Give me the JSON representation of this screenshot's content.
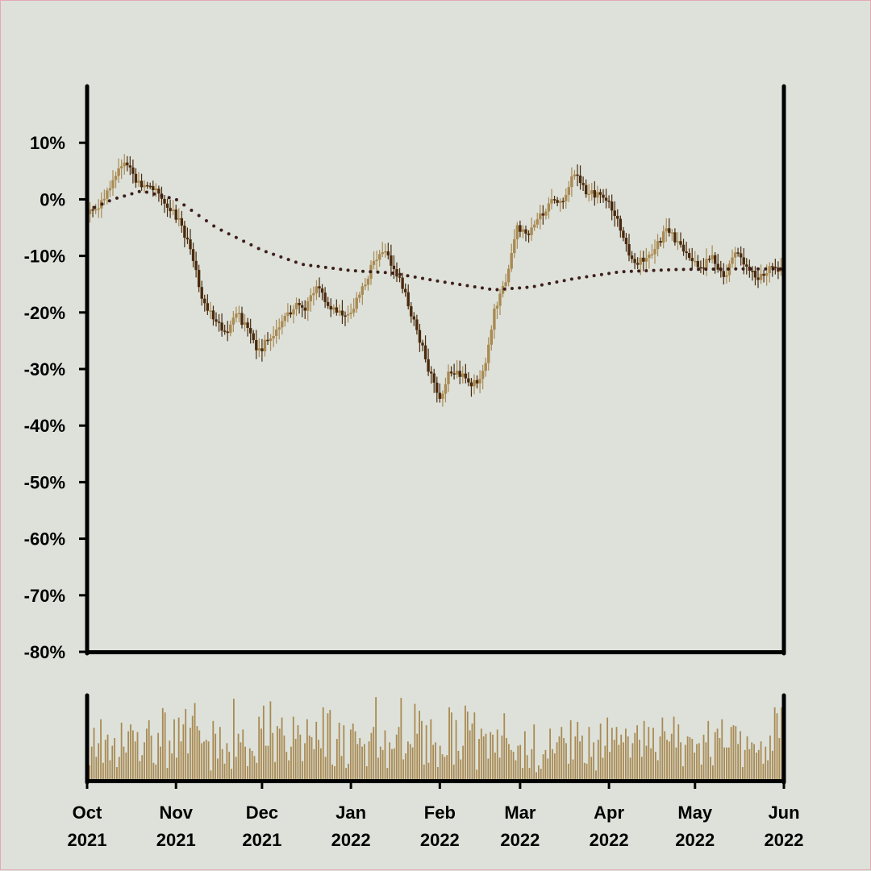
{
  "chart_data": {
    "type": "candlestick",
    "title": "",
    "xlabel": "",
    "ylabel": "",
    "y_unit": "%",
    "ylim": [
      -80,
      20
    ],
    "ytick_labels": [
      "10%",
      "0%",
      "-10%",
      "-20%",
      "-30%",
      "-40%",
      "-50%",
      "-60%",
      "-70%",
      "-80%"
    ],
    "ytick_values": [
      10,
      0,
      -10,
      -20,
      -30,
      -40,
      -50,
      -60,
      -70,
      -80
    ],
    "xlim": [
      "2021-10-01",
      "2022-06-01"
    ],
    "xtick_labels": [
      {
        "line1": "Oct",
        "line2": "2021",
        "date": "2021-10-01"
      },
      {
        "line1": "Nov",
        "line2": "2021",
        "date": "2021-11-01"
      },
      {
        "line1": "Dec",
        "line2": "2021",
        "date": "2021-12-01"
      },
      {
        "line1": "Jan",
        "line2": "2022",
        "date": "2022-01-01"
      },
      {
        "line1": "Feb",
        "line2": "2022",
        "date": "2022-02-01"
      },
      {
        "line1": "Mar",
        "line2": "2022",
        "date": "2022-03-01"
      },
      {
        "line1": "Apr",
        "line2": "2022",
        "date": "2022-04-01"
      },
      {
        "line1": "May",
        "line2": "2022",
        "date": "2022-05-01"
      },
      {
        "line1": "Jun",
        "line2": "2022",
        "date": "2022-06-01"
      }
    ],
    "close_trend": [
      {
        "date": "2021-10-01",
        "value": -2
      },
      {
        "date": "2021-10-05",
        "value": -1
      },
      {
        "date": "2021-10-09",
        "value": 2
      },
      {
        "date": "2021-10-14",
        "value": 7
      },
      {
        "date": "2021-10-18",
        "value": 3
      },
      {
        "date": "2021-10-22",
        "value": 2
      },
      {
        "date": "2021-10-26",
        "value": 1
      },
      {
        "date": "2021-10-29",
        "value": -1
      },
      {
        "date": "2021-11-02",
        "value": -4
      },
      {
        "date": "2021-11-06",
        "value": -9
      },
      {
        "date": "2021-11-10",
        "value": -17
      },
      {
        "date": "2021-11-14",
        "value": -21
      },
      {
        "date": "2021-11-18",
        "value": -24
      },
      {
        "date": "2021-11-22",
        "value": -20
      },
      {
        "date": "2021-11-26",
        "value": -23
      },
      {
        "date": "2021-11-30",
        "value": -27
      },
      {
        "date": "2021-12-04",
        "value": -24
      },
      {
        "date": "2021-12-08",
        "value": -22
      },
      {
        "date": "2021-12-12",
        "value": -19
      },
      {
        "date": "2021-12-16",
        "value": -19
      },
      {
        "date": "2021-12-20",
        "value": -15
      },
      {
        "date": "2021-12-24",
        "value": -19
      },
      {
        "date": "2021-12-28",
        "value": -20
      },
      {
        "date": "2022-01-01",
        "value": -20
      },
      {
        "date": "2022-01-05",
        "value": -16
      },
      {
        "date": "2022-01-09",
        "value": -11
      },
      {
        "date": "2022-01-12",
        "value": -9
      },
      {
        "date": "2022-01-16",
        "value": -12
      },
      {
        "date": "2022-01-20",
        "value": -17
      },
      {
        "date": "2022-01-24",
        "value": -23
      },
      {
        "date": "2022-01-28",
        "value": -30
      },
      {
        "date": "2022-02-01",
        "value": -35
      },
      {
        "date": "2022-02-04",
        "value": -31
      },
      {
        "date": "2022-02-08",
        "value": -31
      },
      {
        "date": "2022-02-12",
        "value": -33
      },
      {
        "date": "2022-02-16",
        "value": -31
      },
      {
        "date": "2022-02-20",
        "value": -20
      },
      {
        "date": "2022-02-24",
        "value": -14
      },
      {
        "date": "2022-02-28",
        "value": -5
      },
      {
        "date": "2022-03-04",
        "value": -6
      },
      {
        "date": "2022-03-08",
        "value": -3
      },
      {
        "date": "2022-03-12",
        "value": 0
      },
      {
        "date": "2022-03-16",
        "value": -1
      },
      {
        "date": "2022-03-20",
        "value": 5
      },
      {
        "date": "2022-03-24",
        "value": 1
      },
      {
        "date": "2022-03-28",
        "value": 1
      },
      {
        "date": "2022-04-01",
        "value": -1
      },
      {
        "date": "2022-04-05",
        "value": -5
      },
      {
        "date": "2022-04-09",
        "value": -11
      },
      {
        "date": "2022-04-13",
        "value": -11
      },
      {
        "date": "2022-04-17",
        "value": -9
      },
      {
        "date": "2022-04-21",
        "value": -5
      },
      {
        "date": "2022-04-25",
        "value": -8
      },
      {
        "date": "2022-04-29",
        "value": -10
      },
      {
        "date": "2022-05-03",
        "value": -12
      },
      {
        "date": "2022-05-07",
        "value": -10
      },
      {
        "date": "2022-05-11",
        "value": -14
      },
      {
        "date": "2022-05-15",
        "value": -9
      },
      {
        "date": "2022-05-19",
        "value": -12
      },
      {
        "date": "2022-05-23",
        "value": -14
      },
      {
        "date": "2022-05-27",
        "value": -12
      },
      {
        "date": "2022-06-01",
        "value": -13
      }
    ],
    "moving_average": [
      {
        "date": "2021-10-01",
        "value": -2
      },
      {
        "date": "2021-10-10",
        "value": 0
      },
      {
        "date": "2021-10-20",
        "value": 1.5
      },
      {
        "date": "2021-11-01",
        "value": 0
      },
      {
        "date": "2021-11-15",
        "value": -5
      },
      {
        "date": "2021-12-01",
        "value": -9
      },
      {
        "date": "2021-12-15",
        "value": -11.5
      },
      {
        "date": "2022-01-01",
        "value": -12.6
      },
      {
        "date": "2022-01-15",
        "value": -13
      },
      {
        "date": "2022-02-01",
        "value": -14.5
      },
      {
        "date": "2022-02-20",
        "value": -16
      },
      {
        "date": "2022-03-05",
        "value": -15.5
      },
      {
        "date": "2022-03-20",
        "value": -14
      },
      {
        "date": "2022-04-05",
        "value": -12.8
      },
      {
        "date": "2022-04-25",
        "value": -12.4
      },
      {
        "date": "2022-05-15",
        "value": -12.3
      },
      {
        "date": "2022-06-01",
        "value": -12.3
      }
    ],
    "volume_panel": {
      "shown": true,
      "scale_max": 100,
      "relative_bars": [
        34,
        18,
        40,
        62,
        28,
        44,
        72,
        21,
        48,
        54,
        24,
        41,
        50,
        16,
        28,
        68,
        40,
        33,
        58,
        66,
        59,
        46,
        57,
        23,
        30,
        45,
        61,
        71,
        53,
        21,
        19,
        56,
        40,
        85,
        80,
        15,
        47,
        32,
        72,
        27,
        74,
        46,
        66,
        84,
        32,
        62,
        76,
        91,
        64,
        59,
        44,
        46,
        48,
        46,
        12,
        70,
        55,
        26,
        63,
        37,
        20,
        44,
        34,
        14,
        96,
        28,
        55,
        45,
        60,
        40,
        17,
        38,
        35,
        29,
        21,
        75,
        61,
        88,
        41,
        41,
        93,
        56,
        22,
        64,
        61,
        74,
        53,
        34,
        24,
        40,
        75,
        49,
        65,
        54,
        23,
        44,
        72,
        53,
        51,
        37,
        69,
        48,
        38,
        86,
        28,
        79,
        83,
        19,
        17,
        49,
        68,
        29,
        65,
        15,
        20,
        60,
        67,
        58,
        43,
        50,
        40,
        43,
        17,
        46,
        56,
        63,
        98,
        27,
        40,
        36,
        59,
        15,
        45,
        37,
        38,
        54,
        63,
        97,
        25,
        32,
        46,
        43,
        39,
        90,
        55,
        82,
        70,
        19,
        65,
        21,
        72,
        42,
        45,
        16,
        41,
        31,
        28,
        30,
        86,
        80,
        19,
        71,
        35,
        25,
        41,
        88,
        81,
        59,
        67,
        80,
        13,
        49,
        61,
        52,
        55,
        26,
        57,
        54,
        33,
        60,
        27,
        53,
        79,
        50,
        43,
        36,
        34,
        24,
        41,
        42,
        15,
        58,
        30,
        15,
        37,
        66,
        10,
        18,
        14,
        31,
        36,
        26,
        61,
        37,
        32,
        45,
        52,
        63,
        50,
        44,
        20,
        71,
        25,
        52,
        69,
        46,
        53,
        21,
        20,
        63,
        28,
        45,
        12,
        48,
        67,
        27,
        41,
        74,
        34,
        62,
        48,
        63,
        42,
        54,
        45,
        61,
        52,
        27,
        44,
        56,
        65,
        48,
        28,
        70,
        41,
        63,
        38,
        62,
        34,
        24,
        52,
        74,
        58,
        48,
        46,
        55,
        75,
        39,
        66,
        45,
        17,
        42,
        52,
        51,
        49,
        33,
        43,
        44,
        19,
        54,
        45,
        70,
        28,
        18,
        57,
        61,
        50,
        72,
        39,
        39,
        39,
        63,
        65,
        64,
        43,
        58,
        16,
        36,
        52,
        37,
        45,
        43,
        33,
        36,
        46,
        20,
        40,
        24,
        53,
        35,
        86,
        79,
        50,
        86,
        88
      ]
    },
    "colors": {
      "background": "#dde1da",
      "up_candle": "#a98a52",
      "down_candle": "#4a2a0c",
      "volume_bar": "#a98a52",
      "moving_average": "#3d1e1a",
      "axis": "#000000"
    },
    "grid": false,
    "legend": "none"
  }
}
